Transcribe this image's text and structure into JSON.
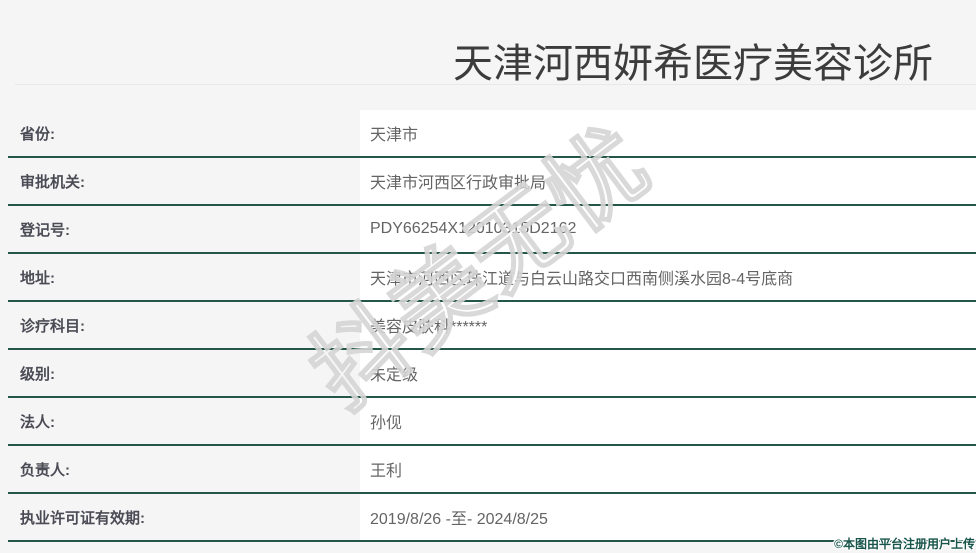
{
  "page": {
    "title": "天津河西妍希医疗美容诊所"
  },
  "table": {
    "rows": [
      {
        "label": "省份:",
        "value": "天津市"
      },
      {
        "label": "审批机关:",
        "value": "天津市河西区行政审批局"
      },
      {
        "label": "登记号:",
        "value": "PDY66254X12010315D2162"
      },
      {
        "label": "地址:",
        "value": "天津市河西区珠江道与白云山路交口西南侧溪水园8-4号底商"
      },
      {
        "label": "诊疗科目:",
        "value": "美容皮肤科******"
      },
      {
        "label": "级别:",
        "value": "未定级"
      },
      {
        "label": "法人:",
        "value": "孙伣"
      },
      {
        "label": "负责人:",
        "value": "王利"
      },
      {
        "label": "执业许可证有效期:",
        "value": "2019/8/26 -至- 2024/8/25"
      }
    ]
  },
  "watermarks": {
    "diagonal": "抖美无忧",
    "corner": "©本图由平台注册用户上传"
  },
  "colors": {
    "page_background": "#f5f5f6",
    "row_separator": "#24574a",
    "title_text": "#3c3c3c",
    "label_text": "#4b4b55",
    "value_text": "#646464",
    "value_cell_background": "#ffffff",
    "diagonal_watermark_stroke": "#d5d5d5",
    "corner_watermark_text": "#17544a"
  }
}
